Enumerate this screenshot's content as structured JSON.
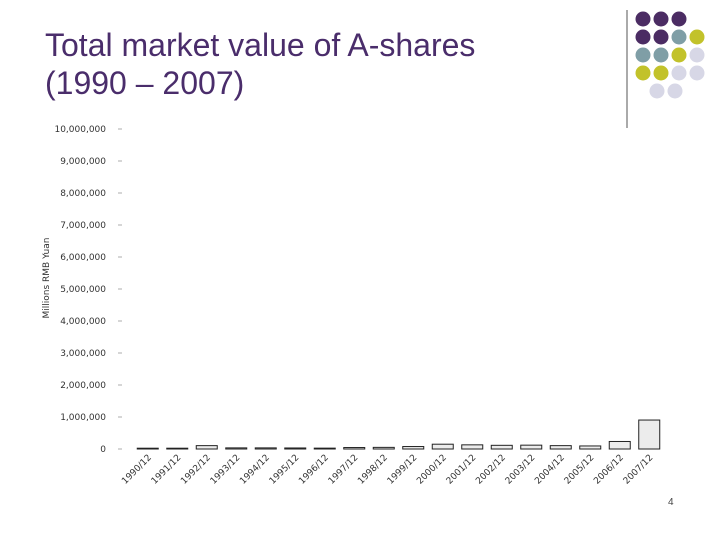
{
  "slide": {
    "title_line1": "Total market value of A-shares",
    "title_line2": "(1990 – 2007)",
    "page_number": "4"
  },
  "colors": {
    "title": "#4a2d6b",
    "bar_fill": "#ececec",
    "bar_stroke": "#222222",
    "dot_purple": "#4b2c63",
    "dot_teal": "#7f9ea6",
    "dot_olive": "#c2c22a",
    "dot_lavender": "#d7d7e6"
  },
  "decoration": {
    "dot_rows": [
      [
        "purple",
        "purple",
        "purple"
      ],
      [
        "purple",
        "purple",
        "teal",
        "olive"
      ],
      [
        "teal",
        "teal",
        "olive",
        "lavender"
      ],
      [
        "olive",
        "olive",
        "lavender",
        "lavender"
      ],
      [
        "lavender",
        "lavender"
      ]
    ]
  },
  "chart_data": {
    "type": "bar",
    "title": "",
    "xlabel": "",
    "ylabel": "Millions RMB Yuan",
    "ylim": [
      0,
      10000000
    ],
    "yticks": [
      0,
      1000000,
      2000000,
      3000000,
      4000000,
      5000000,
      6000000,
      7000000,
      8000000,
      9000000,
      10000000
    ],
    "ytick_labels": [
      "0",
      "1,000,000",
      "2,000,000",
      "3,000,000",
      "4,000,000",
      "5,000,000",
      "6,000,000",
      "7,000,000",
      "8,000,000",
      "9,000,000",
      "10,000,000"
    ],
    "categories": [
      "1990/12",
      "1991/12",
      "1992/12",
      "1993/12",
      "1994/12",
      "1995/12",
      "1996/12",
      "1997/12",
      "1998/12",
      "1999/12",
      "2000/12",
      "2001/12",
      "2002/12",
      "2003/12",
      "2004/12",
      "2005/12",
      "2006/12",
      "2007/12"
    ],
    "values": [
      2000,
      11000,
      105000,
      35000,
      35000,
      32000,
      27000,
      46000,
      51000,
      77000,
      150000,
      130000,
      115000,
      120000,
      105000,
      95000,
      235000,
      905000
    ],
    "grid": false,
    "legend": "none"
  }
}
